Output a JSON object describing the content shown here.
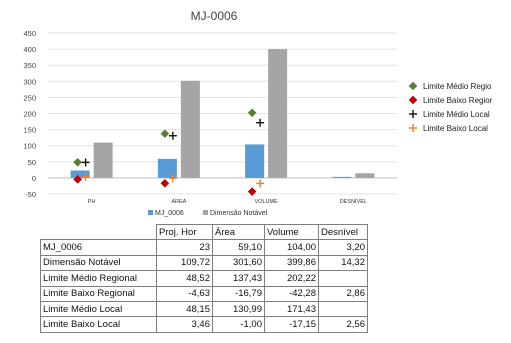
{
  "chart_data": {
    "type": "bar",
    "title": "MJ-0006",
    "categories": [
      "PH",
      "ÁREA",
      "VOLUME",
      "DESNÍVEL"
    ],
    "ylim": [
      -50,
      450
    ],
    "yticks": [
      -50,
      0,
      50,
      100,
      150,
      200,
      250,
      300,
      350,
      400,
      450
    ],
    "grid": true,
    "bar_series": [
      {
        "name": "MJ_0006",
        "color": "#5b9bd5",
        "values": [
          23,
          59.1,
          104.0,
          3.2
        ]
      },
      {
        "name": "Dimensão Notável",
        "color": "#a5a5a5",
        "values": [
          109.72,
          301.6,
          399.86,
          14.32
        ]
      }
    ],
    "marker_series": [
      {
        "name": "Limite Médio Regional",
        "color": "#548235",
        "marker": "diamond",
        "values": [
          48.52,
          137.43,
          202.22,
          null
        ]
      },
      {
        "name": "Limite Baixo Regional",
        "color": "#c00000",
        "marker": "diamond",
        "values": [
          -4.63,
          -16.79,
          -42.28,
          2.86
        ]
      },
      {
        "name": "Limite Médio Local",
        "color": "#111111",
        "marker": "plus",
        "values": [
          48.15,
          130.99,
          171.43,
          null
        ]
      },
      {
        "name": "Limite Baixo Local",
        "color": "#ed7d31",
        "marker": "plus",
        "values": [
          3.46,
          -1.0,
          -17.15,
          2.56
        ]
      }
    ],
    "legend_right_placement": "right",
    "legend_bottom_placement": "bottom",
    "legend_right_labels": [
      "Limite Médio Regio",
      "Limite Baixo Regior",
      "Limite Médio Local",
      "Limite Baixo Local"
    ],
    "legend_bottom_labels": [
      "MJ_0006",
      "Dimensão Notável"
    ]
  },
  "table": {
    "header": [
      "",
      "Proj. Hor",
      "Área",
      "Volume",
      "Desnível"
    ],
    "rows": [
      [
        "MJ_0006",
        "23",
        "59,10",
        "104,00",
        "3,20"
      ],
      [
        "Dimensão Notável",
        "109,72",
        "301,60",
        "399,86",
        "14,32"
      ],
      [
        "Limite Médio Regional",
        "48,52",
        "137,43",
        "202,22",
        ""
      ],
      [
        "Limite Baixo Regional",
        "-4,63",
        "-16,79",
        "-42,28",
        "2,86"
      ],
      [
        "Limite Médio Local",
        "48,15",
        "130,99",
        "171,43",
        ""
      ],
      [
        "Limite Baixo Local",
        "3,46",
        "-1,00",
        "-17,15",
        "2,56"
      ]
    ]
  }
}
